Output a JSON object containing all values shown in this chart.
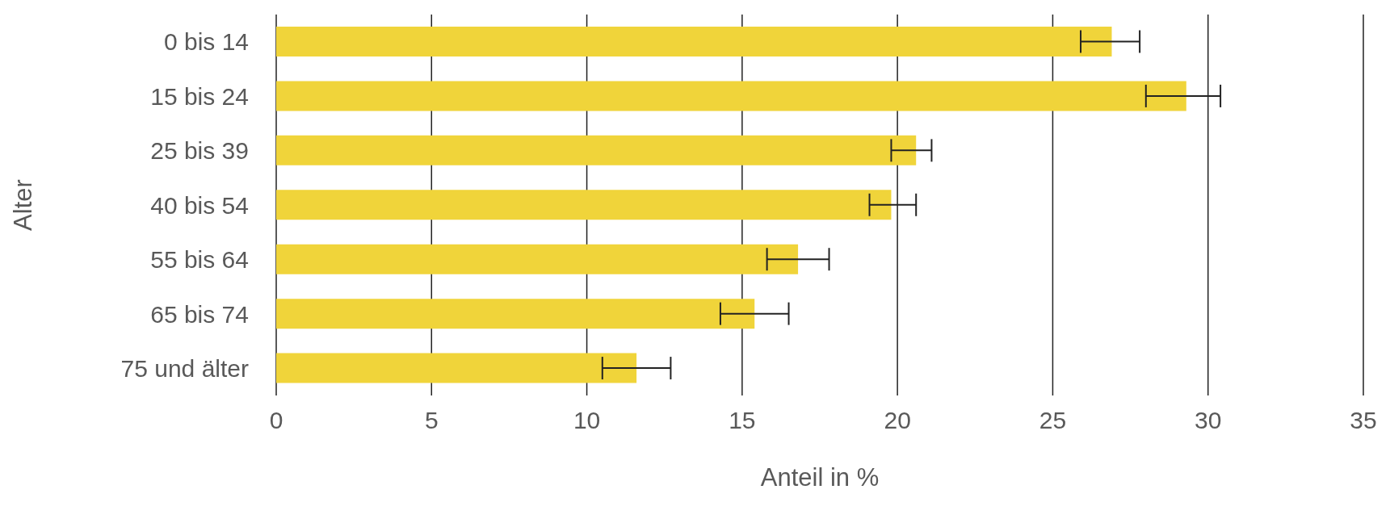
{
  "chart_data": {
    "type": "bar",
    "orientation": "horizontal",
    "xlabel": "Anteil in %",
    "ylabel": "Alter",
    "categories": [
      "0 bis 14",
      "15 bis 24",
      "25 bis 39",
      "40 bis 54",
      "55 bis 64",
      "65 bis 74",
      "75 und älter"
    ],
    "values": [
      26.9,
      29.3,
      20.6,
      19.8,
      16.8,
      15.4,
      11.6
    ],
    "errors": [
      [
        25.9,
        27.8
      ],
      [
        28.0,
        30.4
      ],
      [
        19.8,
        21.1
      ],
      [
        19.1,
        20.6
      ],
      [
        15.8,
        17.8
      ],
      [
        14.3,
        16.5
      ],
      [
        10.5,
        12.7
      ]
    ],
    "color": "#f0d43a",
    "xlim": [
      0,
      35
    ],
    "xticks": [
      0,
      5,
      10,
      15,
      20,
      25,
      30,
      35
    ],
    "grid": "x"
  }
}
